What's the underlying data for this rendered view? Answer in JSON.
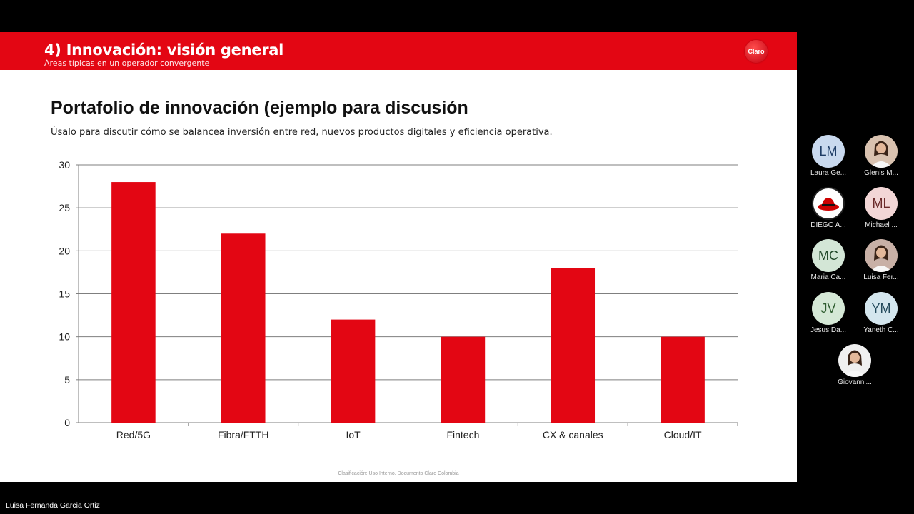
{
  "header": {
    "title": "4) Innovación: visión general",
    "subtitle": "Áreas típicas en un operador convergente",
    "logo_text": "Claro"
  },
  "slide": {
    "title": "Portafolio de innovación (ejemplo para discusión",
    "description": "Úsalo para discutir cómo se balancea inversión entre red, nuevos productos digitales y eficiencia operativa.",
    "footer_note": "Clasificación: Uso Interno. Documento Claro Colombia"
  },
  "chart_data": {
    "type": "bar",
    "categories": [
      "Red/5G",
      "Fibra/FTTH",
      "IoT",
      "Fintech",
      "CX & canales",
      "Cloud/IT"
    ],
    "values": [
      28,
      22,
      12,
      10,
      18,
      10
    ],
    "ylim": [
      0,
      30
    ],
    "yticks": [
      0,
      5,
      10,
      15,
      20,
      25,
      30
    ],
    "grid": true,
    "legend": "none",
    "bar_color": "#e30613"
  },
  "participants": [
    {
      "initials": "LM",
      "name": "Laura Ge...",
      "avatar_bg": "#c9d9ee",
      "initials_color": "#1f3d66",
      "icon": "initials-avatar"
    },
    {
      "initials": "",
      "name": "Glenis M...",
      "avatar_bg": "#d9c2b0",
      "initials_color": "#333",
      "icon": "person-photo-icon"
    },
    {
      "initials": "",
      "name": "DIEGO A...",
      "avatar_bg": "#ffffff",
      "initials_color": "#cc0000",
      "icon": "redhat-logo-icon"
    },
    {
      "initials": "ML",
      "name": "Michael ...",
      "avatar_bg": "#f2d6d6",
      "initials_color": "#6b2a2a",
      "icon": "initials-avatar"
    },
    {
      "initials": "MC",
      "name": "Maria Ca...",
      "avatar_bg": "#d3e6d6",
      "initials_color": "#234a2b",
      "icon": "initials-avatar"
    },
    {
      "initials": "",
      "name": "Luisa Fer...",
      "avatar_bg": "#c8b0a6",
      "initials_color": "#333",
      "icon": "person-photo-icon"
    },
    {
      "initials": "JV",
      "name": "Jesus Da...",
      "avatar_bg": "#d5e8d6",
      "initials_color": "#2e5c2f",
      "icon": "initials-avatar"
    },
    {
      "initials": "YM",
      "name": "Yaneth C...",
      "avatar_bg": "#d4e6ee",
      "initials_color": "#244a5c",
      "icon": "initials-avatar"
    },
    {
      "initials": "",
      "name": "Giovanni...",
      "avatar_bg": "#f0f0f0",
      "initials_color": "#333",
      "icon": "person-photo-icon"
    }
  ],
  "presenter": {
    "name": "Luisa Fernanda Garcia Ortiz"
  }
}
